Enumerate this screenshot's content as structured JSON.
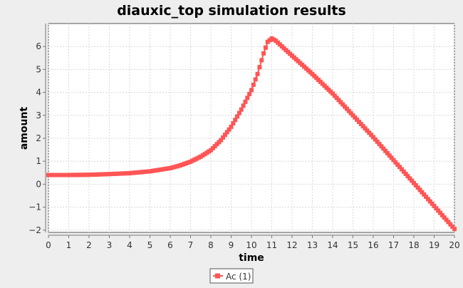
{
  "chart_data": {
    "type": "line",
    "title": "diauxic_top simulation results",
    "xlabel": "time",
    "ylabel": "amount",
    "xlim": [
      0,
      20
    ],
    "ylim": [
      -2.1,
      7
    ],
    "xticks": [
      0,
      1,
      2,
      3,
      4,
      5,
      6,
      7,
      8,
      9,
      10,
      11,
      12,
      13,
      14,
      15,
      16,
      17,
      18,
      19,
      20
    ],
    "yticks": [
      -2,
      -1,
      0,
      1,
      2,
      3,
      4,
      5,
      6
    ],
    "grid": true,
    "legend": "bottom-center",
    "series": [
      {
        "name": "Ac (1)",
        "color": "#ff5555",
        "marker": "square",
        "keypoints": [
          [
            0,
            0.4
          ],
          [
            1,
            0.4
          ],
          [
            2,
            0.41
          ],
          [
            3,
            0.44
          ],
          [
            4,
            0.48
          ],
          [
            5,
            0.56
          ],
          [
            6,
            0.7
          ],
          [
            6.5,
            0.82
          ],
          [
            7,
            0.98
          ],
          [
            7.5,
            1.2
          ],
          [
            8,
            1.48
          ],
          [
            8.5,
            1.92
          ],
          [
            9,
            2.5
          ],
          [
            9.5,
            3.25
          ],
          [
            10,
            4.1
          ],
          [
            10.3,
            4.8
          ],
          [
            10.6,
            5.7
          ],
          [
            10.8,
            6.2
          ],
          [
            11,
            6.35
          ],
          [
            11.2,
            6.25
          ],
          [
            12,
            5.6
          ],
          [
            13,
            4.8
          ],
          [
            14,
            3.95
          ],
          [
            15,
            3.0
          ],
          [
            16,
            2.05
          ],
          [
            17,
            1.05
          ],
          [
            18,
            0.05
          ],
          [
            19,
            -0.95
          ],
          [
            20,
            -1.95
          ]
        ]
      }
    ]
  }
}
